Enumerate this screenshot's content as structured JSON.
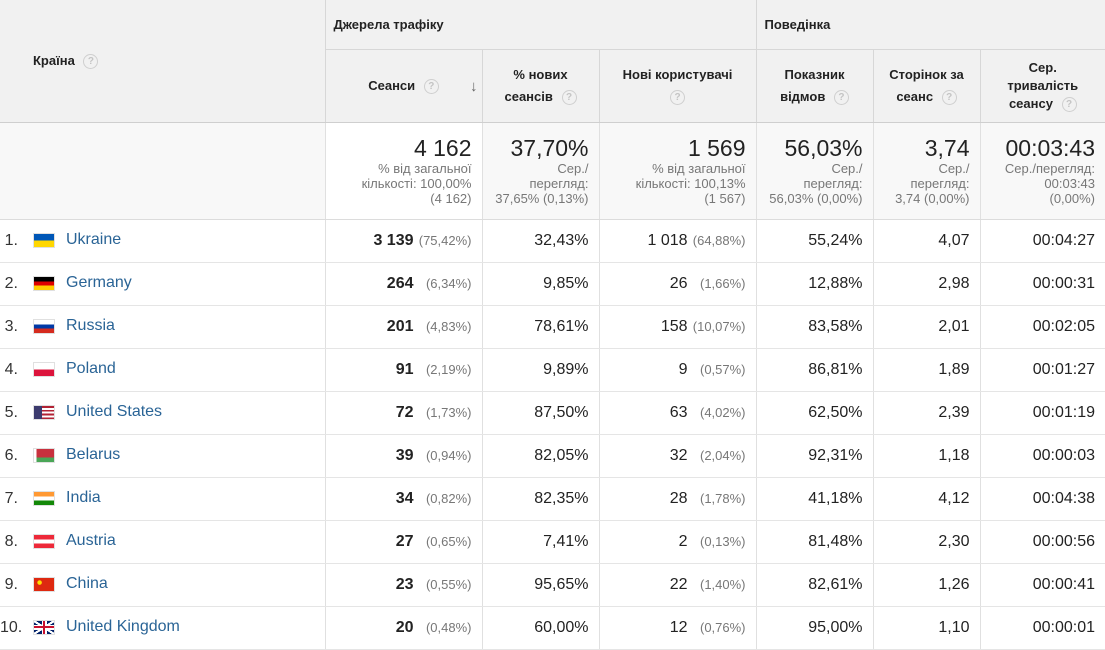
{
  "header": {
    "country": "Країна",
    "group_acquisition": "Джерела трафіку",
    "group_behavior": "Поведінка",
    "sessions": "Сеанси",
    "new_sessions_l1": "% нових",
    "new_sessions_l2": "сеансів",
    "new_users": "Нові користувачі",
    "bounce_l1": "Показник",
    "bounce_l2": "відмов",
    "pages_l1": "Сторінок за",
    "pages_l2": "сеанс",
    "duration_l1": "Сер.",
    "duration_l2": "тривалість",
    "duration_l3": "сеансу",
    "help_glyph": "?",
    "sort_glyph": "↓",
    "sort_icon": "arrow-down-icon"
  },
  "totals": {
    "sessions": "4 162",
    "sessions_l1": "% від загальної",
    "sessions_l2": "кількості: 100,00%",
    "sessions_l3": "(4 162)",
    "new_sessions": "37,70%",
    "new_sessions_l1": "Сер./",
    "new_sessions_l2": "перегляд:",
    "new_sessions_l3": "37,65% (0,13%)",
    "new_users": "1 569",
    "new_users_l1": "% від загальної",
    "new_users_l2": "кількості: 100,13%",
    "new_users_l3": "(1 567)",
    "bounce": "56,03%",
    "bounce_l1": "Сер./",
    "bounce_l2": "перегляд:",
    "bounce_l3": "56,03% (0,00%)",
    "pages": "3,74",
    "pages_l1": "Сер./",
    "pages_l2": "перегляд:",
    "pages_l3": "3,74 (0,00%)",
    "duration": "00:03:43",
    "duration_l1": "Сер./перегляд:",
    "duration_l2": "00:03:43",
    "duration_l3": "(0,00%)"
  },
  "rows": [
    {
      "idx": "1.",
      "flag": "ua",
      "country": "Ukraine",
      "sessions": "3 139",
      "sessions_pct": "(75,42%)",
      "new_sessions": "32,43%",
      "new_users": "1 018",
      "new_users_pct": "(64,88%)",
      "bounce": "55,24%",
      "pages": "4,07",
      "duration": "00:04:27"
    },
    {
      "idx": "2.",
      "flag": "de",
      "country": "Germany",
      "sessions": "264",
      "sessions_pct": "(6,34%)",
      "new_sessions": "9,85%",
      "new_users": "26",
      "new_users_pct": "(1,66%)",
      "bounce": "12,88%",
      "pages": "2,98",
      "duration": "00:00:31"
    },
    {
      "idx": "3.",
      "flag": "ru",
      "country": "Russia",
      "sessions": "201",
      "sessions_pct": "(4,83%)",
      "new_sessions": "78,61%",
      "new_users": "158",
      "new_users_pct": "(10,07%)",
      "bounce": "83,58%",
      "pages": "2,01",
      "duration": "00:02:05"
    },
    {
      "idx": "4.",
      "flag": "pl",
      "country": "Poland",
      "sessions": "91",
      "sessions_pct": "(2,19%)",
      "new_sessions": "9,89%",
      "new_users": "9",
      "new_users_pct": "(0,57%)",
      "bounce": "86,81%",
      "pages": "1,89",
      "duration": "00:01:27"
    },
    {
      "idx": "5.",
      "flag": "us",
      "country": "United States",
      "sessions": "72",
      "sessions_pct": "(1,73%)",
      "new_sessions": "87,50%",
      "new_users": "63",
      "new_users_pct": "(4,02%)",
      "bounce": "62,50%",
      "pages": "2,39",
      "duration": "00:01:19"
    },
    {
      "idx": "6.",
      "flag": "by",
      "country": "Belarus",
      "sessions": "39",
      "sessions_pct": "(0,94%)",
      "new_sessions": "82,05%",
      "new_users": "32",
      "new_users_pct": "(2,04%)",
      "bounce": "92,31%",
      "pages": "1,18",
      "duration": "00:00:03"
    },
    {
      "idx": "7.",
      "flag": "in",
      "country": "India",
      "sessions": "34",
      "sessions_pct": "(0,82%)",
      "new_sessions": "82,35%",
      "new_users": "28",
      "new_users_pct": "(1,78%)",
      "bounce": "41,18%",
      "pages": "4,12",
      "duration": "00:04:38"
    },
    {
      "idx": "8.",
      "flag": "at",
      "country": "Austria",
      "sessions": "27",
      "sessions_pct": "(0,65%)",
      "new_sessions": "7,41%",
      "new_users": "2",
      "new_users_pct": "(0,13%)",
      "bounce": "81,48%",
      "pages": "2,30",
      "duration": "00:00:56"
    },
    {
      "idx": "9.",
      "flag": "cn",
      "country": "China",
      "sessions": "23",
      "sessions_pct": "(0,55%)",
      "new_sessions": "95,65%",
      "new_users": "22",
      "new_users_pct": "(1,40%)",
      "bounce": "82,61%",
      "pages": "1,26",
      "duration": "00:00:41"
    },
    {
      "idx": "10.",
      "flag": "gb",
      "country": "United Kingdom",
      "sessions": "20",
      "sessions_pct": "(0,48%)",
      "new_sessions": "60,00%",
      "new_users": "12",
      "new_users_pct": "(0,76%)",
      "bounce": "95,00%",
      "pages": "1,10",
      "duration": "00:00:01"
    }
  ],
  "colors": {
    "link": "#2a6496",
    "header_bg": "#f1f1f1",
    "totals_bg": "#f8f8f8"
  }
}
